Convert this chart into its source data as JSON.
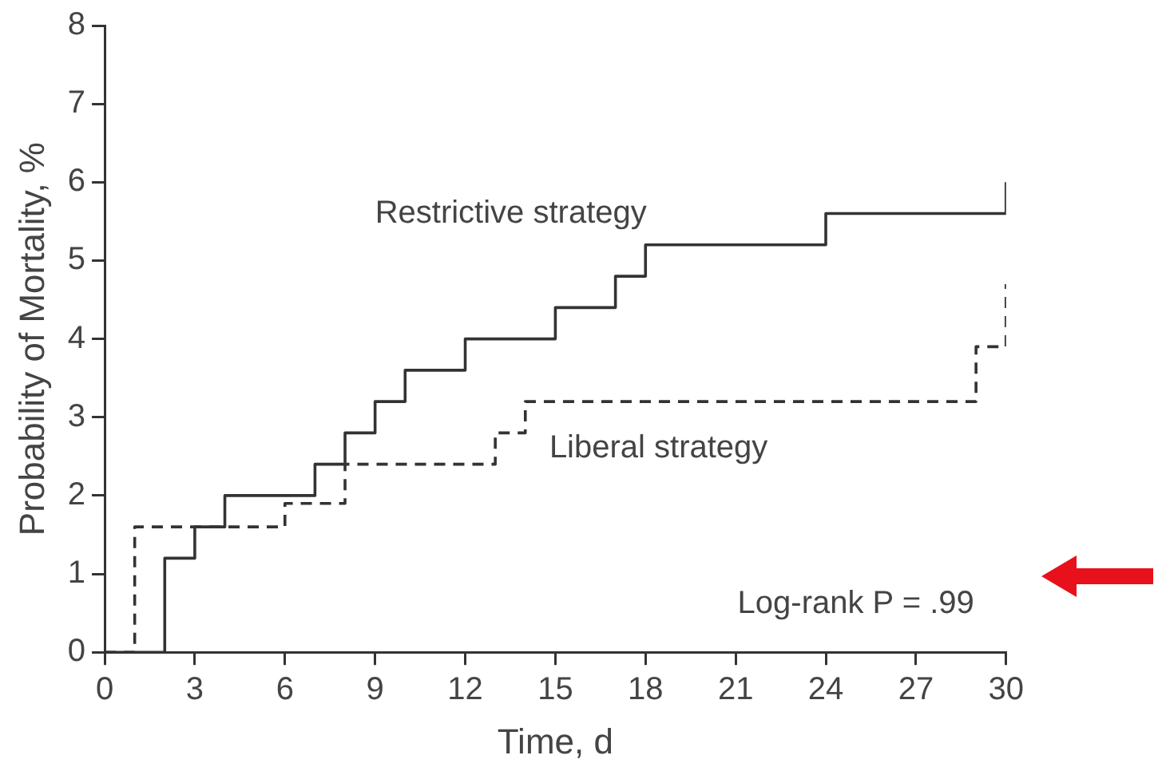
{
  "chart_data": {
    "type": "step",
    "xlabel": "Time, d",
    "ylabel": "Probability of Mortality, %",
    "xlim": [
      0,
      30
    ],
    "xticks": [
      0,
      3,
      6,
      9,
      12,
      15,
      18,
      21,
      24,
      27,
      30
    ],
    "ylim": [
      0,
      8
    ],
    "yticks": [
      0,
      1,
      2,
      3,
      4,
      5,
      6,
      7,
      8
    ],
    "grid": false,
    "legend": false,
    "marker": "none",
    "series": [
      {
        "name": "Restrictive strategy",
        "color": "#333333",
        "line_style": "solid",
        "x": [
          0,
          2,
          3,
          4,
          7,
          8,
          9,
          10,
          12,
          15,
          17,
          18,
          24,
          30
        ],
        "values": [
          0,
          1.2,
          1.6,
          2.0,
          2.4,
          2.8,
          3.2,
          3.6,
          4.0,
          4.4,
          4.8,
          5.2,
          5.6,
          6.0
        ]
      },
      {
        "name": "Liberal strategy",
        "color": "#333333",
        "line_style": "dashed",
        "x": [
          0,
          1,
          6,
          8,
          13,
          14,
          29,
          30
        ],
        "values": [
          0,
          1.6,
          1.9,
          2.4,
          2.8,
          3.2,
          3.9,
          4.7
        ]
      }
    ],
    "annotations": [
      "Log-rank P = .99"
    ]
  }
}
